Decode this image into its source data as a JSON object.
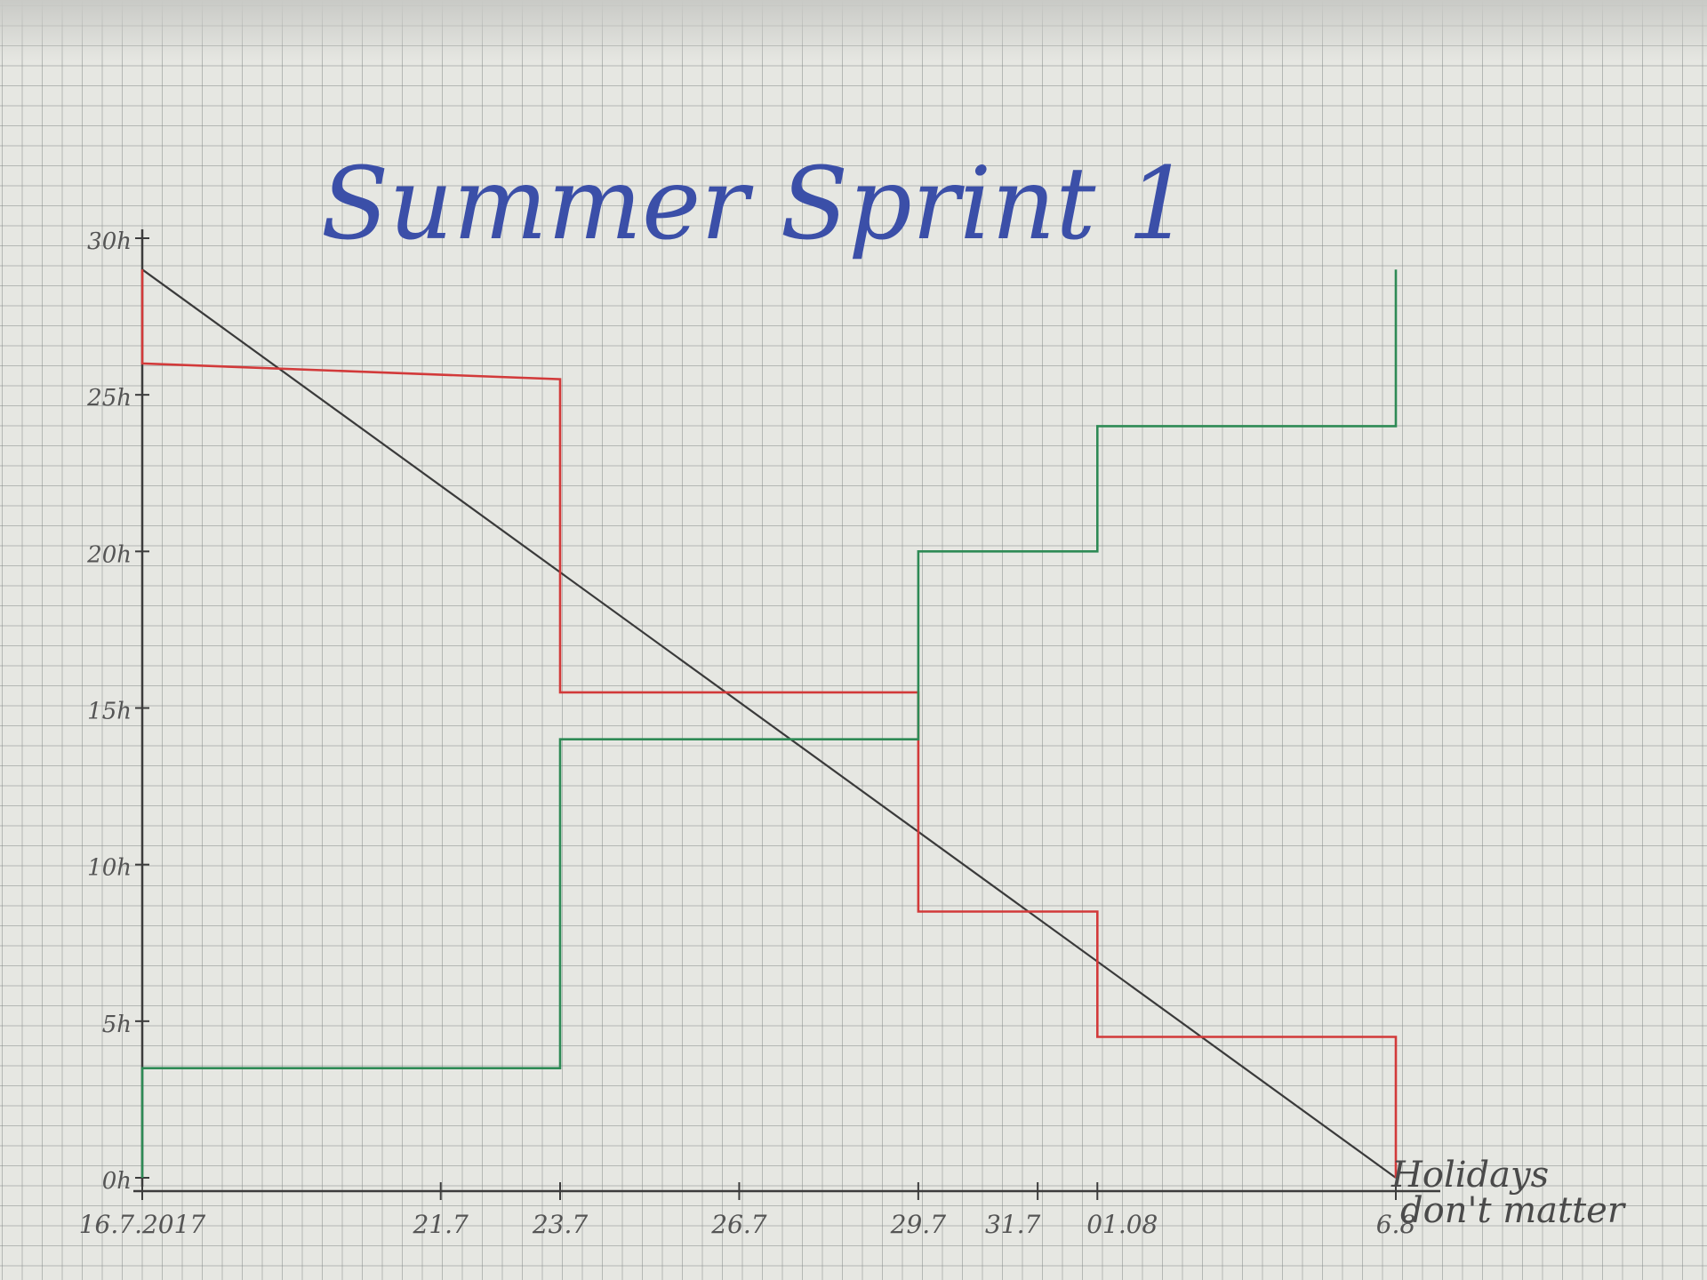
{
  "chart_data": {
    "type": "line",
    "title": "Summer Sprint 1",
    "xlabel": "",
    "ylabel": "",
    "x_ticks": [
      "16.7.2017",
      "21.7",
      "23.7",
      "26.7",
      "29.7",
      "31.7",
      "01.08",
      "6.8"
    ],
    "y_ticks": [
      "0h",
      "5h",
      "10h",
      "15h",
      "20h",
      "25h",
      "30h"
    ],
    "xlim": [
      "2017-07-16",
      "2017-08-06"
    ],
    "ylim": [
      0,
      30
    ],
    "annotation": "Holidays don't matter",
    "series": [
      {
        "color": "#3a3a3a",
        "style": "straight-line",
        "points": [
          {
            "x": "2017-07-16",
            "y": 29
          },
          {
            "x": "2017-08-06",
            "y": 0
          }
        ]
      },
      {
        "color": "#d23a3a",
        "style": "step",
        "points": [
          {
            "x": "2017-07-16",
            "y": 29
          },
          {
            "x": "2017-07-16",
            "y": 26
          },
          {
            "x": "2017-07-23",
            "y": 25.5
          },
          {
            "x": "2017-07-23",
            "y": 15.5
          },
          {
            "x": "2017-07-29",
            "y": 15.5
          },
          {
            "x": "2017-07-29",
            "y": 8.5
          },
          {
            "x": "2017-08-01",
            "y": 8.5
          },
          {
            "x": "2017-08-01",
            "y": 4.5
          },
          {
            "x": "2017-08-06",
            "y": 4.5
          },
          {
            "x": "2017-08-06",
            "y": 0
          }
        ]
      },
      {
        "color": "#2e8a55",
        "style": "step",
        "points": [
          {
            "x": "2017-07-16",
            "y": 0
          },
          {
            "x": "2017-07-16",
            "y": 3.5
          },
          {
            "x": "2017-07-23",
            "y": 3.5
          },
          {
            "x": "2017-07-23",
            "y": 14
          },
          {
            "x": "2017-07-29",
            "y": 14
          },
          {
            "x": "2017-07-29",
            "y": 20
          },
          {
            "x": "2017-08-01",
            "y": 20
          },
          {
            "x": "2017-08-01",
            "y": 24
          },
          {
            "x": "2017-08-06",
            "y": 24
          },
          {
            "x": "2017-08-06",
            "y": 29
          }
        ]
      }
    ]
  }
}
